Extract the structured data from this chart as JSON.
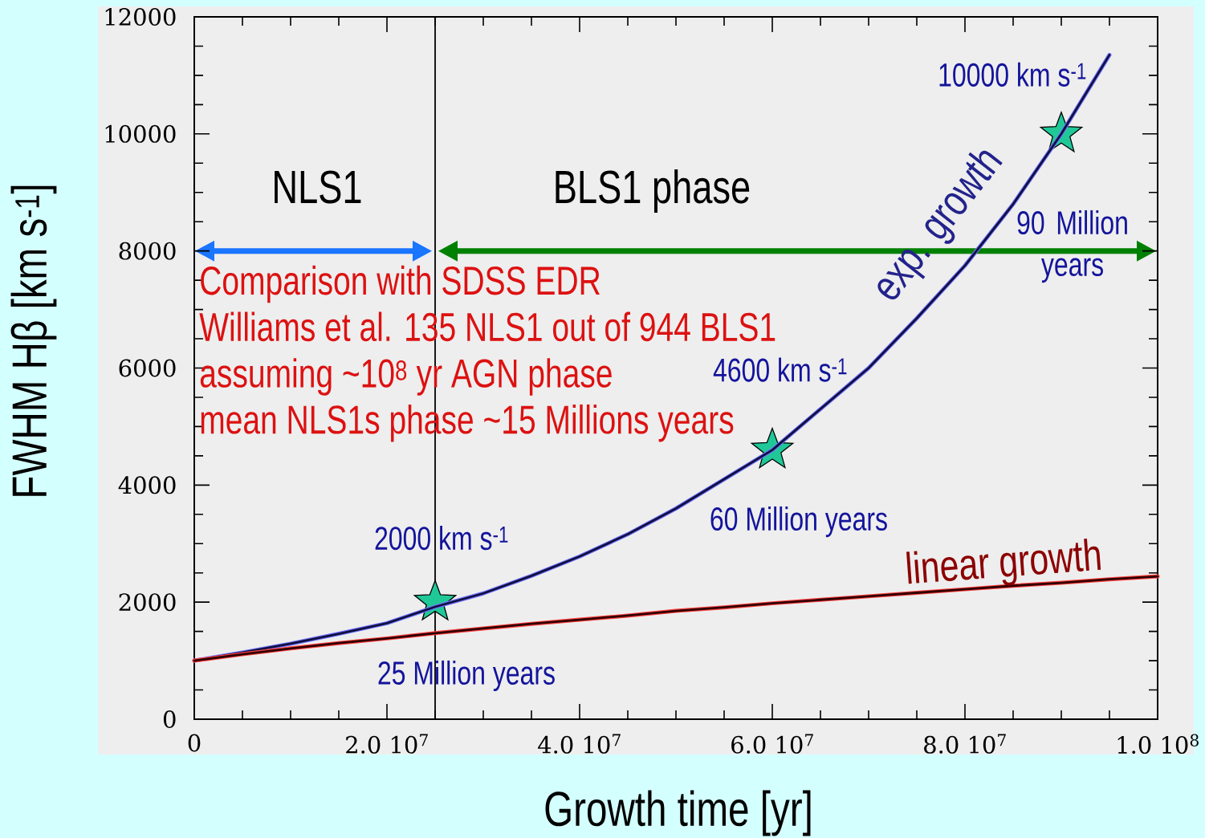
{
  "chart_data": {
    "type": "line",
    "xlabel": "Growth time [yr]",
    "ylabel": "FWHM Hβ [km s$^{-1}$]",
    "categories": [
      "0",
      null,
      null,
      null,
      "2.0 10$^{7}$",
      null,
      null,
      null,
      "4.0 10$^{7}$",
      null,
      null,
      null,
      "6.0 10$^{7}$",
      null,
      null,
      null,
      "8.0 10$^{7}$",
      null,
      null,
      null,
      "1.0 10$^{8}$"
    ],
    "ylim": [
      0,
      12000
    ],
    "yticks": [
      0,
      {
        "value": 500,
        "label": null
      },
      {
        "value": 1000,
        "label": null
      },
      {
        "value": 1500,
        "label": null
      },
      2000,
      {
        "value": 2500,
        "label": null
      },
      {
        "value": 3000,
        "label": null
      },
      {
        "value": 3500,
        "label": null
      },
      4000,
      {
        "value": 4500,
        "label": null
      },
      {
        "value": 5000,
        "label": null
      },
      {
        "value": 5500,
        "label": null
      },
      6000,
      {
        "value": 6500,
        "label": null
      },
      {
        "value": 7000,
        "label": null
      },
      {
        "value": 7500,
        "label": null
      },
      8000,
      {
        "value": 8500,
        "label": null
      },
      {
        "value": 9000,
        "label": null
      },
      {
        "value": 9500,
        "label": null
      },
      10000,
      {
        "value": 10500,
        "label": null
      },
      {
        "value": 11000,
        "label": null
      },
      {
        "value": 11500,
        "label": null
      },
      12000
    ],
    "series": [
      {
        "name": "exp. growth",
        "color": "#101040",
        "values": [
          1000,
          1140,
          1290,
          1460,
          1640,
          1920,
          2150,
          2450,
          2780,
          3160,
          3600,
          4100,
          4600,
          5300,
          6000,
          6850,
          7750,
          8800,
          10000,
          11350,
          null
        ]
      },
      {
        "name": "linear growth",
        "color": "#300000",
        "values": [
          1000,
          1110,
          1210,
          1300,
          1380,
          1470,
          1550,
          1630,
          1700,
          1770,
          1850,
          1910,
          1980,
          2040,
          2100,
          2160,
          2220,
          2280,
          2330,
          2390,
          2440
        ]
      },
      {
        "type": "scatter",
        "color": "#20c898",
        "marker": "star",
        "values": [
          null,
          null,
          null,
          null,
          null,
          2000,
          null,
          null,
          null,
          null,
          null,
          null,
          4600,
          null,
          null,
          null,
          null,
          null,
          10000,
          null,
          null
        ],
        "value_labels": [
          null,
          null,
          null,
          null,
          null,
          "2000 km s$^{-1}$",
          null,
          null,
          null,
          null,
          null,
          null,
          "4600 km s$^{-1}$",
          null,
          null,
          null,
          null,
          null,
          "10000 km s$^{-1}$",
          null,
          null
        ]
      }
    ],
    "annotations": [
      "NLS1",
      "BLS1 phase",
      "25 Million years",
      "60 Million years",
      "90 Million years",
      "Comparison with SDSS EDR",
      "Williams et al. 135 NLS1 out of 944 BLS1",
      "assuming ~10$^{8}$ yr AGN phase",
      "mean NLS1s phase ~15 Millions years"
    ]
  }
}
